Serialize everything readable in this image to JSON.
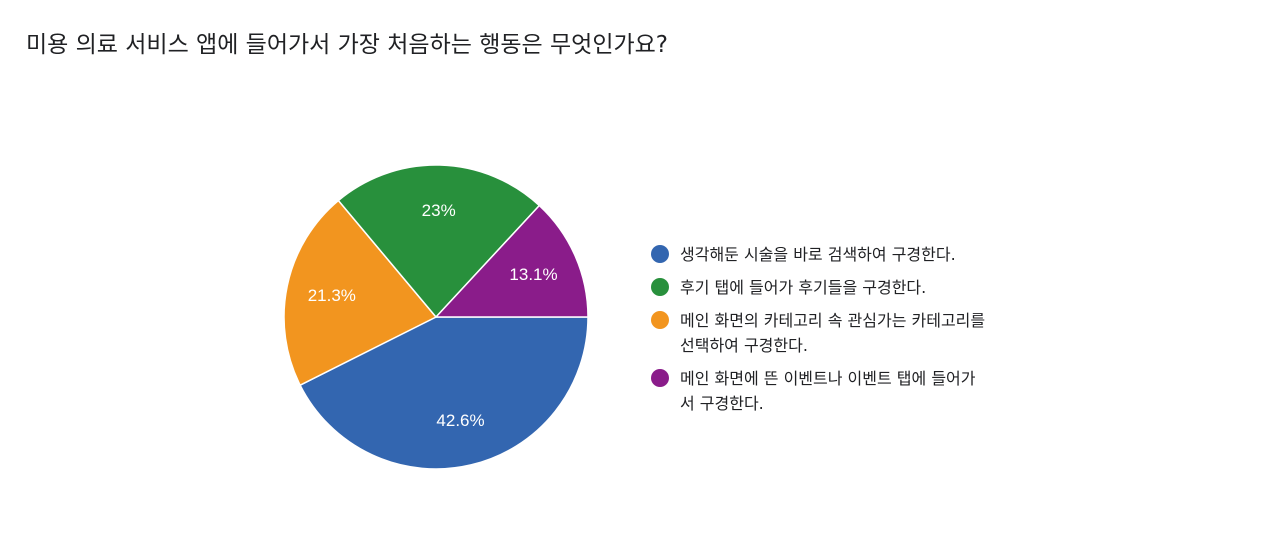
{
  "title": "미용 의료 서비스 앱에 들어가서 가장 처음하는 행동은 무엇인가요?",
  "chart_data": {
    "type": "pie",
    "title": "미용 의료 서비스 앱에 들어가서 가장 처음하는 행동은 무엇인가요?",
    "legend_position": "right",
    "slices": [
      {
        "label": "생각해둔 시술을 바로 검색하여 구경한다.",
        "value": 42.6,
        "display": "42.6%",
        "color": "#3366b0"
      },
      {
        "label": "후기 탭에 들어가 후기들을 구경한다.",
        "value": 23.0,
        "display": "23%",
        "color": "#28903c"
      },
      {
        "label": "메인 화면의 카테고리 속 관심가는 카테고리를\n선택하여 구경한다.",
        "value": 21.3,
        "display": "21.3%",
        "color": "#f2951f"
      },
      {
        "label": "메인 화면에 뜬 이벤트나 이벤트 탭에 들어가\n서 구경한다.",
        "value": 13.1,
        "display": "13.1%",
        "color": "#8a1c8a"
      }
    ],
    "drawing_order": [
      "생각해둔 시술을 바로 검색하여 구경한다.",
      "메인 화면의 카테고리 속 관심가는 카테고리를\n선택하여 구경한다.",
      "후기 탭에 들어가 후기들을 구경한다.",
      "메인 화면에 뜬 이벤트나 이벤트 탭에 들어가\n서 구경한다."
    ]
  }
}
